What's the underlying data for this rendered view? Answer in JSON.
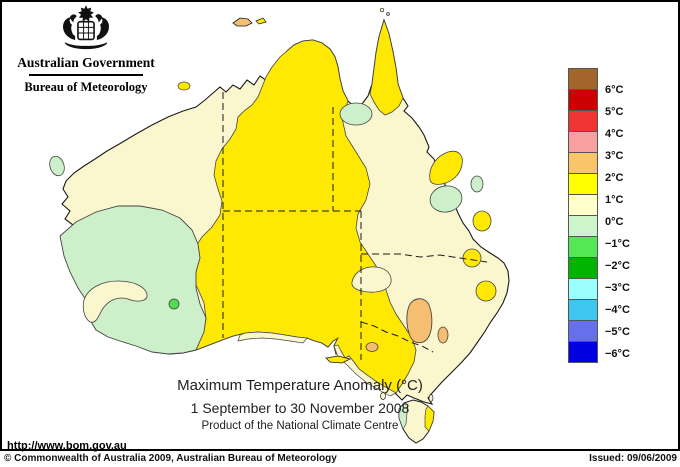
{
  "header": {
    "government": "Australian Government",
    "bureau": "Bureau of Meteorology"
  },
  "titles": {
    "line1": "Maximum Temperature Anomaly (°C)",
    "line2": "1 September to 30 November 2008",
    "line3": "Product of the National Climate Centre"
  },
  "url": "http://www.bom.gov.au",
  "footer": {
    "copyright": "© Commonwealth of Australia 2009, Australian Bureau of Meteorology",
    "issued": "Issued: 09/06/2009"
  },
  "legend": {
    "labels": [
      "6°C",
      "5°C",
      "4°C",
      "3°C",
      "2°C",
      "1°C",
      "0°C",
      "−1°C",
      "−2°C",
      "−3°C",
      "−4°C",
      "−5°C",
      "−6°C"
    ],
    "colors": [
      "#A2662C",
      "#CC0000",
      "#F03333",
      "#F8A0A0",
      "#F9C567",
      "#FFFF00",
      "#FFFFCC",
      "#CCF5CC",
      "#55E855",
      "#00B400",
      "#99FFFF",
      "#3CC6F0",
      "#6670EE",
      "#0000E0"
    ]
  },
  "palette": {
    "ocean": "#FFFFFF",
    "outline": "#1a1a1a",
    "yellow": "#FFE903",
    "cream": "#FAF6CE",
    "light_green": "#CDEFC9",
    "bright_green": "#4FDE4F",
    "orange": "#F6BE70"
  },
  "map": {
    "subject": "Australia maximum temperature anomaly, contour-filled choropleth",
    "dominant_class": "1–2 °C (yellow) over most of the continent",
    "regions": [
      {
        "area": "Central Australia, NT, inland WA, SA, western NSW/QLD, Victoria",
        "anomaly": "1 to 2 °C"
      },
      {
        "area": "North-west coast, Top End fringe, Gulf country, eastern QLD and coastal NSW, Bight coast",
        "anomaly": "0 to 1 °C"
      },
      {
        "area": "South-west Western Australia (large), Gulf lowlands, central-coast QLD patches, western Tasmania",
        "anomaly": "-1 to 0 °C"
      },
      {
        "area": "Small spot on WA south coast",
        "anomaly": "-2 to -1 °C"
      },
      {
        "area": "North-west Victoria / southern NSW patches, Tiwi Islands",
        "anomaly": "2 to 3 °C"
      }
    ],
    "state_borders": "dashed black lines",
    "islands": [
      "Tasmania",
      "King Island",
      "Flinders Island",
      "Kangaroo Island",
      "Tiwi Islands",
      "Torres Strait islands"
    ]
  }
}
